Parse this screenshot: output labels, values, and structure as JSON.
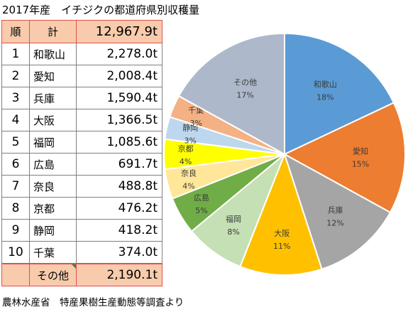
{
  "title": "2017年産　イチジクの都道府県別収穫量",
  "table": {
    "header": {
      "rank": "順",
      "name": "計",
      "value": "12,967.9t"
    },
    "rows": [
      {
        "rank": "1",
        "name": "和歌山",
        "value": "2,278.0t"
      },
      {
        "rank": "2",
        "name": "愛知",
        "value": "2,008.4t"
      },
      {
        "rank": "3",
        "name": "兵庫",
        "value": "1,590.4t"
      },
      {
        "rank": "4",
        "name": "大阪",
        "value": "1,366.5t"
      },
      {
        "rank": "5",
        "name": "福岡",
        "value": "1,085.6t"
      },
      {
        "rank": "6",
        "name": "広島",
        "value": "691.7t"
      },
      {
        "rank": "7",
        "name": "奈良",
        "value": "488.8t"
      },
      {
        "rank": "8",
        "name": "京都",
        "value": "476.2t"
      },
      {
        "rank": "9",
        "name": "静岡",
        "value": "418.2t"
      },
      {
        "rank": "10",
        "name": "千葉",
        "value": "374.0t"
      }
    ],
    "other": {
      "name": "その他",
      "value": "2,190.1t"
    }
  },
  "source": "農林水産省　特産果樹生産動態等調査より",
  "chart_data": {
    "type": "pie",
    "title": "",
    "start_angle_deg": 0,
    "direction": "clockwise",
    "slices": [
      {
        "label": "和歌山",
        "value": 18,
        "pct": "18%",
        "color": "#5b9bd5",
        "text_color": "#3a3a3a"
      },
      {
        "label": "愛知",
        "value": 15,
        "pct": "15%",
        "color": "#ed7d31",
        "text_color": "#3a3a3a"
      },
      {
        "label": "兵庫",
        "value": 12,
        "pct": "12%",
        "color": "#a5a5a5",
        "text_color": "#3a3a3a"
      },
      {
        "label": "大阪",
        "value": 11,
        "pct": "11%",
        "color": "#ffc000",
        "text_color": "#3a3a3a"
      },
      {
        "label": "福岡",
        "value": 8,
        "pct": "8%",
        "color": "#c5e0b4",
        "text_color": "#3a3a3a"
      },
      {
        "label": "広島",
        "value": 5,
        "pct": "5%",
        "color": "#70ad47",
        "text_color": "#3a3a3a"
      },
      {
        "label": "奈良",
        "value": 4,
        "pct": "4%",
        "color": "#ffe699",
        "text_color": "#3a3a3a"
      },
      {
        "label": "京都",
        "value": 4,
        "pct": "4%",
        "color": "#ffff00",
        "text_color": "#3a3a3a"
      },
      {
        "label": "静岡",
        "value": 3,
        "pct": "3%",
        "color": "#bdd7ee",
        "text_color": "#3a3a3a"
      },
      {
        "label": "千葉",
        "value": 3,
        "pct": "3%",
        "color": "#f4b183",
        "text_color": "#3a3a3a"
      },
      {
        "label": "その他",
        "value": 17,
        "pct": "17%",
        "color": "#adb9ca",
        "text_color": "#3a3a3a"
      }
    ]
  }
}
